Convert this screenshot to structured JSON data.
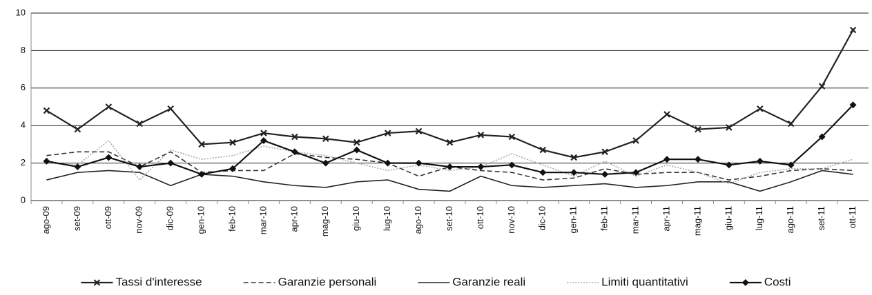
{
  "chart_data": {
    "type": "line",
    "categories": [
      "ago-09",
      "set-09",
      "ott-09",
      "nov-09",
      "dic-09",
      "gen-10",
      "feb-10",
      "mar-10",
      "apr-10",
      "mag-10",
      "giu-10",
      "lug-10",
      "ago-10",
      "set-10",
      "ott-10",
      "nov-10",
      "dic-10",
      "gen-11",
      "feb-11",
      "mar-11",
      "apr-11",
      "mag-11",
      "giu-11",
      "lug-11",
      "ago-11",
      "set-11",
      "ott-11"
    ],
    "series": [
      {
        "name": "Tassi d'interesse",
        "color": "#222222",
        "dash": "solid",
        "marker": "x",
        "values": [
          4.8,
          3.8,
          5.0,
          4.1,
          4.9,
          3.0,
          3.1,
          3.6,
          3.4,
          3.3,
          3.1,
          3.6,
          3.7,
          3.1,
          3.5,
          3.4,
          2.7,
          2.3,
          2.6,
          3.2,
          4.6,
          3.8,
          3.9,
          4.9,
          4.1,
          6.1,
          9.1
        ]
      },
      {
        "name": "Garanzie personali",
        "color": "#333333",
        "dash": "dashed",
        "values": [
          2.4,
          2.6,
          2.6,
          1.8,
          2.6,
          1.5,
          1.6,
          1.6,
          2.5,
          2.3,
          2.2,
          2.0,
          1.3,
          1.8,
          1.6,
          1.5,
          1.1,
          1.2,
          1.7,
          1.4,
          1.5,
          1.5,
          1.1,
          1.3,
          1.6,
          1.7,
          1.6
        ]
      },
      {
        "name": "Garanzie reali",
        "color": "#222222",
        "dash": "solid",
        "values": [
          1.1,
          1.5,
          1.6,
          1.5,
          0.8,
          1.4,
          1.3,
          1.0,
          0.8,
          0.7,
          1.0,
          1.1,
          0.6,
          0.5,
          1.3,
          0.8,
          0.7,
          0.8,
          0.9,
          0.7,
          0.8,
          1.0,
          1.0,
          0.5,
          1.0,
          1.6,
          1.4
        ]
      },
      {
        "name": "Limiti quantitativi",
        "color": "#aaaaaa",
        "dash": "dotted",
        "values": [
          2.0,
          1.9,
          3.2,
          1.1,
          2.7,
          2.2,
          2.4,
          2.9,
          2.6,
          2.4,
          2.0,
          1.6,
          1.9,
          1.6,
          1.8,
          2.5,
          1.9,
          1.3,
          2.1,
          1.3,
          1.9,
          1.5,
          0.9,
          1.5,
          1.7,
          1.7,
          2.2
        ]
      },
      {
        "name": "Costi",
        "color": "#111111",
        "dash": "solid",
        "marker": "diamond",
        "values": [
          2.1,
          1.8,
          2.3,
          1.8,
          2.0,
          1.4,
          1.7,
          3.2,
          2.6,
          2.0,
          2.7,
          2.0,
          2.0,
          1.8,
          1.8,
          1.9,
          1.5,
          1.5,
          1.4,
          1.5,
          2.2,
          2.2,
          1.9,
          2.1,
          1.9,
          3.4,
          5.1
        ]
      }
    ],
    "ylim": [
      0,
      10
    ],
    "yticks": [
      0,
      2,
      4,
      6,
      8,
      10
    ],
    "grid": true,
    "legend": "bottom"
  }
}
